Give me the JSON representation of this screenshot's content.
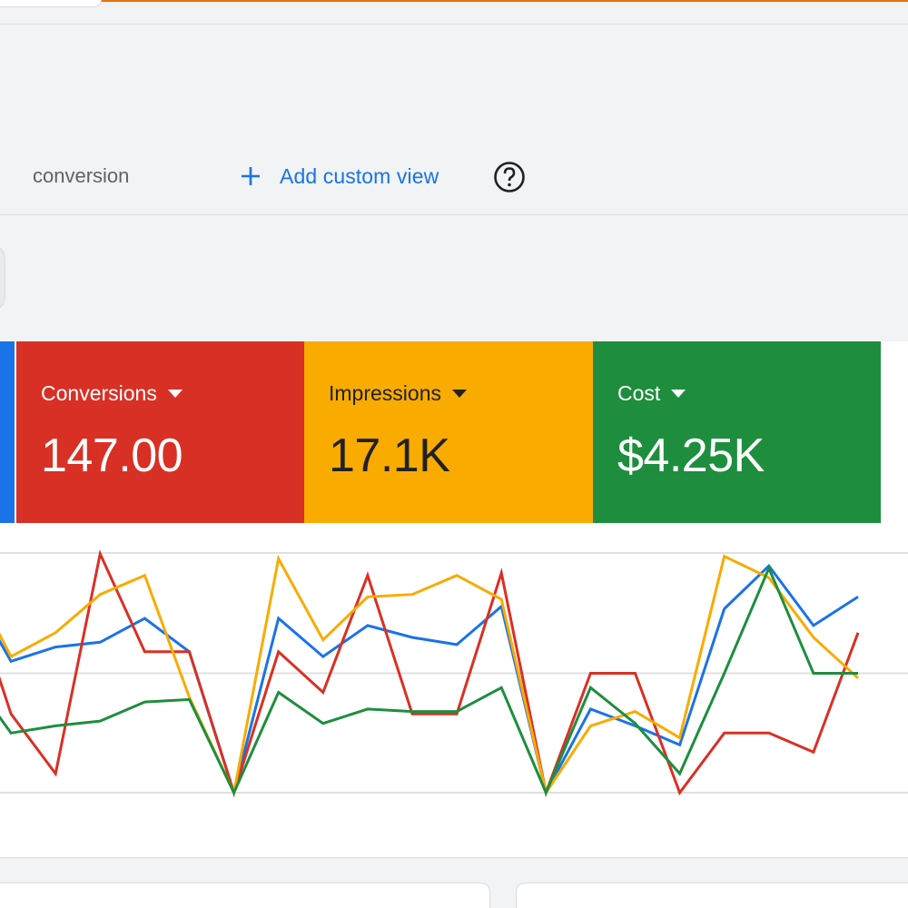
{
  "colors": {
    "accent_orange": "#e37400",
    "link_blue": "#1a73e8",
    "blue": "#1a73e8",
    "red": "#d93025",
    "yellow": "#f9ab00",
    "green": "#1e8e3e"
  },
  "tabs": {
    "conversion_label": "conversion",
    "add_custom_view_label": "Add custom view"
  },
  "icons": {
    "add": "plus-icon",
    "help": "help-circle-icon",
    "dropdown": "caret-down-icon"
  },
  "metrics": [
    {
      "label": "Conversions",
      "value": "147.00",
      "color": "#d93025",
      "text_color": "#ffffff"
    },
    {
      "label": "Impressions",
      "value": "17.1K",
      "color": "#f9ab00",
      "text_color": "#202124"
    },
    {
      "label": "Cost",
      "value": "$4.25K",
      "color": "#1e8e3e",
      "text_color": "#ffffff"
    }
  ],
  "chart_data": {
    "type": "line",
    "x": [
      1,
      2,
      3,
      4,
      5,
      6,
      7,
      8,
      9,
      10,
      11,
      12,
      13,
      14,
      15,
      16,
      17,
      18,
      19,
      20,
      21
    ],
    "ylim": [
      0,
      100
    ],
    "grid": true,
    "series": [
      {
        "color": "#1a73e8",
        "values": [
          88,
          55,
          61,
          63,
          73,
          59,
          0,
          73,
          57,
          70,
          65,
          62,
          78,
          0,
          35,
          28,
          20,
          77,
          95,
          70,
          82
        ]
      },
      {
        "color": "#d93025",
        "values": [
          90,
          33,
          8,
          100,
          59,
          59,
          0,
          59,
          42,
          91,
          33,
          33,
          92,
          0,
          50,
          50,
          0,
          25,
          25,
          17,
          67
        ]
      },
      {
        "color": "#f9ab00",
        "values": [
          93,
          57,
          67,
          83,
          91,
          40,
          0,
          98,
          64,
          82,
          83,
          91,
          81,
          0,
          28,
          34,
          23,
          99,
          90,
          65,
          48
        ]
      },
      {
        "color": "#1e8e3e",
        "values": [
          51,
          25,
          28,
          30,
          38,
          39,
          0,
          42,
          29,
          35,
          34,
          34,
          44,
          0,
          44,
          29,
          8,
          50,
          94,
          50,
          50
        ]
      }
    ]
  }
}
